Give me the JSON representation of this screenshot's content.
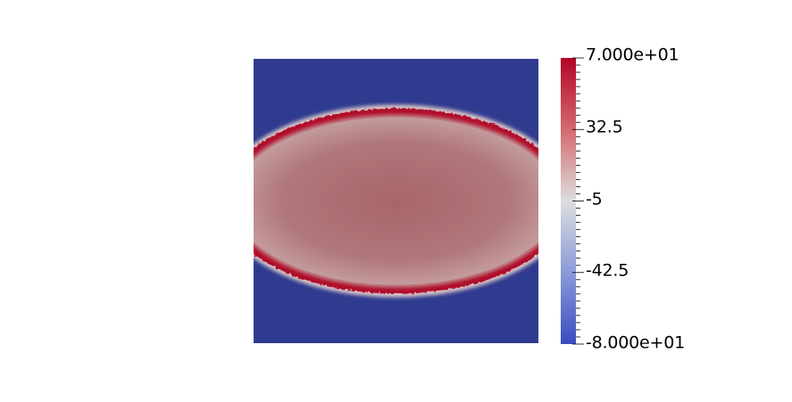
{
  "colorbar": {
    "range": [
      -80,
      70
    ],
    "labels": [
      "7.000e+01",
      "32.5",
      "-5",
      "-42.5",
      "-8.000e+01"
    ],
    "label_values": [
      70,
      32.5,
      -5,
      -42.5,
      -80
    ],
    "colormap": "Cool to Warm",
    "colors": {
      "low": "#3b4cc0",
      "mid": "#dddddd",
      "high": "#b40426"
    }
  },
  "field": {
    "background_value": -80,
    "interior_value": 20,
    "front_value": 70,
    "colors": {
      "background": "#2f3b8f",
      "interior": "#b07577",
      "interior_edge": "#c09898",
      "front": "#b0102a"
    }
  }
}
